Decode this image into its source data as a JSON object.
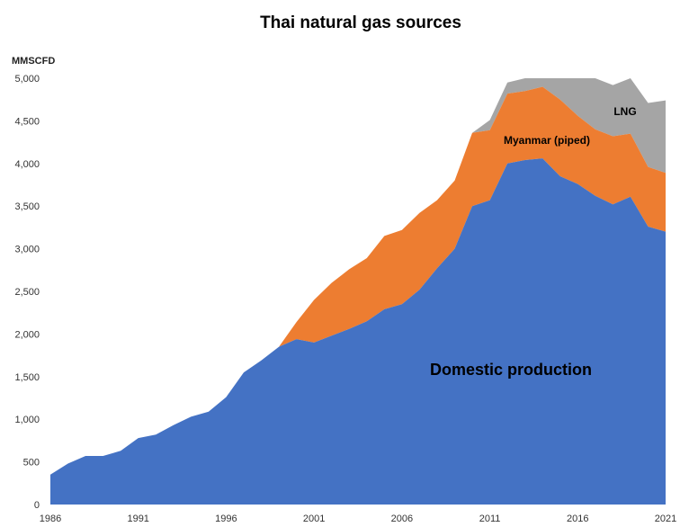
{
  "chart_data": {
    "type": "area",
    "stacked": true,
    "title": "Thai natural gas sources",
    "ylabel": "MMSCFD",
    "xlabel": "",
    "ylim": [
      0,
      5000
    ],
    "xlim": [
      1986,
      2021
    ],
    "grid": false,
    "legend": "none",
    "y_ticks": [
      "0",
      "500",
      "1,000",
      "1,500",
      "2,000",
      "2,500",
      "3,000",
      "3,500",
      "4,000",
      "4,500",
      "5,000"
    ],
    "y_tick_values": [
      0,
      500,
      1000,
      1500,
      2000,
      2500,
      3000,
      3500,
      4000,
      4500,
      5000
    ],
    "x_ticks": [
      "1986",
      "1991",
      "1996",
      "2001",
      "2006",
      "2011",
      "2016",
      "2021"
    ],
    "x_tick_values": [
      1986,
      1991,
      1996,
      2001,
      2006,
      2011,
      2016,
      2021
    ],
    "x": [
      1986,
      1987,
      1988,
      1989,
      1990,
      1991,
      1992,
      1993,
      1994,
      1995,
      1996,
      1997,
      1998,
      1999,
      2000,
      2001,
      2002,
      2003,
      2004,
      2005,
      2006,
      2007,
      2008,
      2009,
      2010,
      2011,
      2012,
      2013,
      2014,
      2015,
      2016,
      2017,
      2018,
      2019,
      2020,
      2021
    ],
    "series": [
      {
        "name": "Domestic production",
        "color": "#4472c4",
        "values": [
          350,
          480,
          570,
          570,
          630,
          780,
          820,
          930,
          1030,
          1090,
          1260,
          1550,
          1690,
          1850,
          1940,
          1900,
          1980,
          2060,
          2150,
          2290,
          2350,
          2520,
          2770,
          3000,
          3500,
          3570,
          4000,
          4040,
          4060,
          3850,
          3760,
          3620,
          3520,
          3610,
          3260,
          3200
        ]
      },
      {
        "name": "Myanmar (piped)",
        "color": "#ed7d31",
        "values": [
          0,
          0,
          0,
          0,
          0,
          0,
          0,
          0,
          0,
          0,
          0,
          0,
          0,
          0,
          200,
          500,
          620,
          700,
          740,
          860,
          870,
          900,
          800,
          800,
          860,
          820,
          820,
          810,
          840,
          900,
          800,
          780,
          800,
          740,
          700,
          690
        ]
      },
      {
        "name": "LNG",
        "color": "#a5a5a5",
        "values": [
          0,
          0,
          0,
          0,
          0,
          0,
          0,
          0,
          0,
          0,
          0,
          0,
          0,
          0,
          0,
          0,
          0,
          0,
          0,
          0,
          0,
          0,
          0,
          0,
          0,
          120,
          130,
          150,
          100,
          250,
          440,
          600,
          600,
          650,
          750,
          850
        ]
      }
    ],
    "labels": [
      {
        "text": "Domestic production",
        "series": 0
      },
      {
        "text": "Myanmar (piped)",
        "series": 1
      },
      {
        "text": "LNG",
        "series": 2
      }
    ]
  }
}
